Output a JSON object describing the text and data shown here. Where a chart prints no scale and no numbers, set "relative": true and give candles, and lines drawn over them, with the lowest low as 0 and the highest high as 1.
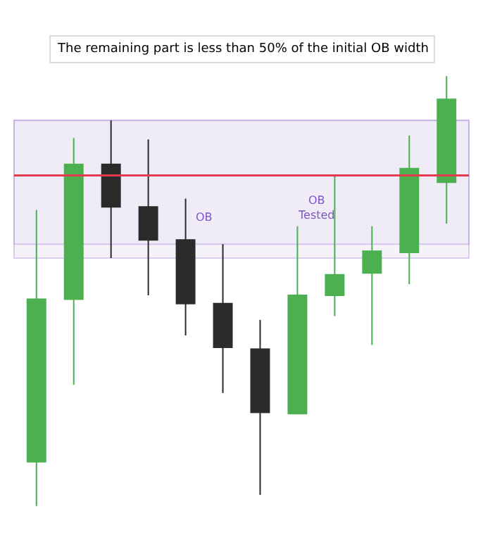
{
  "chart_data": {
    "type": "candlestick",
    "relative": true,
    "categories": [
      null,
      null,
      null,
      null,
      null,
      null,
      null,
      null,
      null,
      null,
      null,
      null
    ],
    "ohlc": [
      [
        0.103,
        0.689,
        0,
        0.481
      ],
      [
        0.481,
        0.856,
        0.282,
        0.795
      ],
      [
        0.795,
        0.897,
        0.577,
        0.696
      ],
      [
        0.696,
        0.853,
        0.49,
        0.619
      ],
      [
        0.619,
        0.715,
        0.397,
        0.471
      ],
      [
        0.471,
        0.609,
        0.263,
        0.369
      ],
      [
        0.365,
        0.433,
        0.026,
        0.218
      ],
      [
        0.215,
        0.651,
        0.215,
        0.49
      ],
      [
        0.49,
        0.769,
        0.442,
        0.538
      ],
      [
        0.542,
        0.651,
        0.375,
        0.593
      ],
      [
        0.59,
        0.862,
        0.516,
        0.785
      ],
      [
        0.753,
        1,
        0.657,
        0.946
      ]
    ],
    "colors": [
      "#4caf50",
      "#4caf50",
      "#2b2b2b",
      "#2b2b2b",
      "#2b2b2b",
      "#2b2b2b",
      "#2b2b2b",
      "#4caf50",
      "#4caf50",
      "#4caf50",
      "#4caf50",
      "#4caf50"
    ],
    "bands": [
      {
        "axis": "y",
        "from": 0.577,
        "to": 0.897,
        "label": "OB",
        "color": "#ede7f6"
      },
      {
        "axis": "y",
        "from": 0.609,
        "to": 0.897,
        "label": "OB\nTested",
        "color": "#ede7f6"
      }
    ],
    "ref_lines": [
      {
        "axis": "y",
        "value": 0.769,
        "label": null,
        "color": "#e53950"
      }
    ],
    "annotations": [
      "The remaining part is less than 50% of the initial OB width"
    ]
  }
}
